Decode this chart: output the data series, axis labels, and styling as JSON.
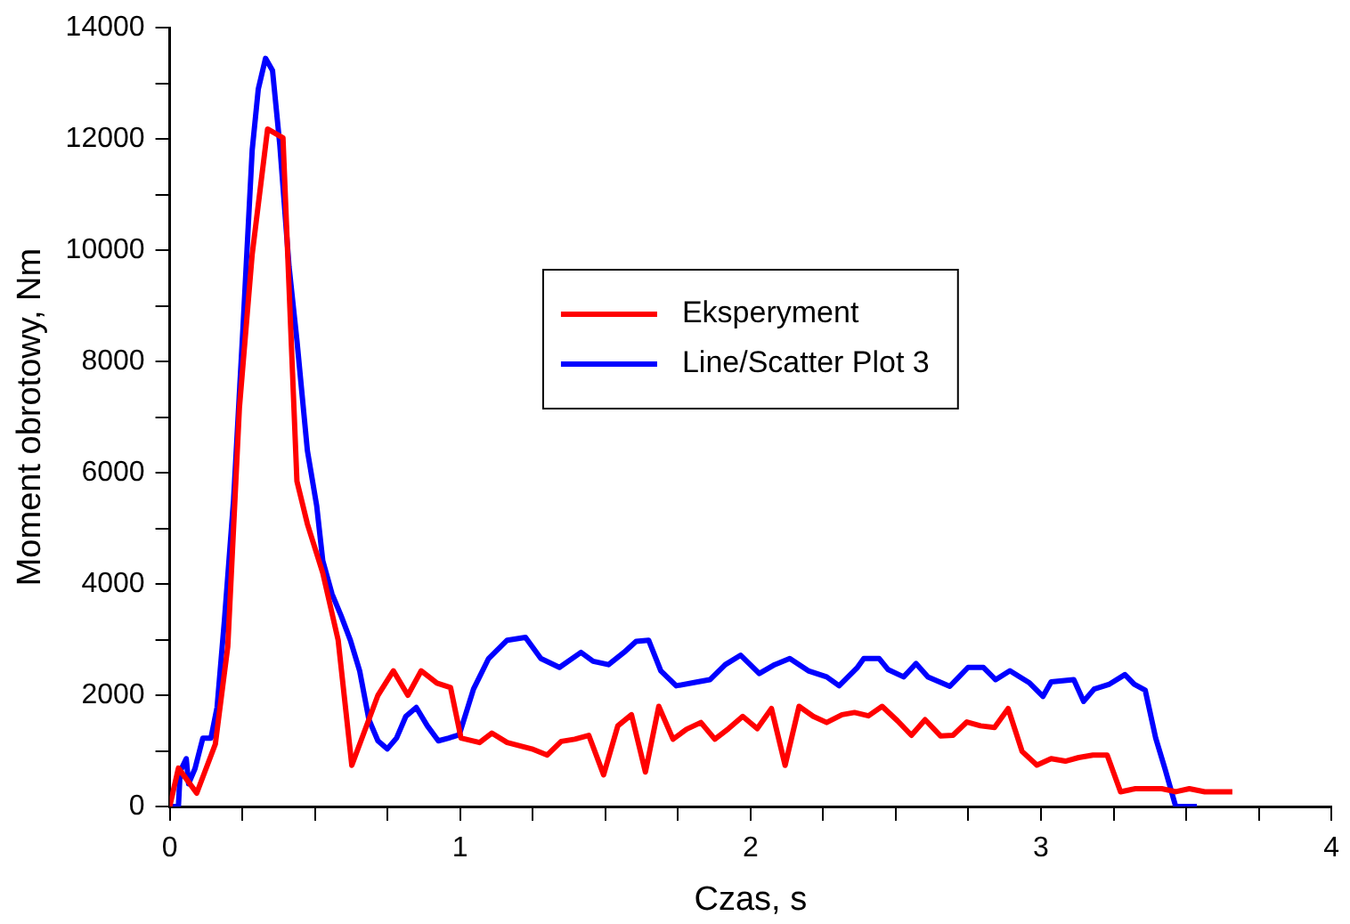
{
  "chart_data": {
    "type": "line",
    "xlabel": "Czas, s",
    "ylabel": "Moment obrotowy, Nm",
    "xlim": [
      0,
      4
    ],
    "xticks": [
      0,
      {
        "value": 0.25,
        "label": null
      },
      {
        "value": 0.5,
        "label": null
      },
      {
        "value": 0.75,
        "label": null
      },
      1,
      {
        "value": 1.25,
        "label": null
      },
      {
        "value": 1.5,
        "label": null
      },
      {
        "value": 1.75,
        "label": null
      },
      2,
      {
        "value": 2.25,
        "label": null
      },
      {
        "value": 2.5,
        "label": null
      },
      {
        "value": 2.75,
        "label": null
      },
      3,
      {
        "value": 3.25,
        "label": null
      },
      {
        "value": 3.5,
        "label": null
      },
      {
        "value": 3.75,
        "label": null
      },
      4
    ],
    "ylim": [
      0,
      14000
    ],
    "yticks": [
      0,
      {
        "value": 1000,
        "label": null
      },
      2000,
      {
        "value": 3000,
        "label": null
      },
      4000,
      {
        "value": 5000,
        "label": null
      },
      6000,
      {
        "value": 7000,
        "label": null
      },
      8000,
      {
        "value": 9000,
        "label": null
      },
      10000,
      {
        "value": 11000,
        "label": null
      },
      12000,
      {
        "value": 13000,
        "label": null
      },
      14000
    ],
    "legend": "center",
    "series": [
      {
        "name": "Eksperyment",
        "color": "#ff0000",
        "x": [
          0,
          0.03,
          0.093,
          0.157,
          0.2,
          0.24,
          0.284,
          0.337,
          0.39,
          0.438,
          0.474,
          0.527,
          0.58,
          0.627,
          0.717,
          0.77,
          0.82,
          0.866,
          0.92,
          0.967,
          1.003,
          1.067,
          1.109,
          1.162,
          1.247,
          1.3,
          1.348,
          1.395,
          1.443,
          1.494,
          1.543,
          1.59,
          1.638,
          1.684,
          1.733,
          1.78,
          1.829,
          1.877,
          1.924,
          1.973,
          2.023,
          2.072,
          2.119,
          2.167,
          2.216,
          2.262,
          2.315,
          2.358,
          2.406,
          2.453,
          2.506,
          2.554,
          2.601,
          2.654,
          2.697,
          2.745,
          2.792,
          2.84,
          2.887,
          2.935,
          2.986,
          3.035,
          3.084,
          3.13,
          3.179,
          3.228,
          3.274,
          3.325,
          3.416,
          3.464,
          3.511,
          3.564,
          3.659
        ],
        "values": [
          0,
          690,
          240,
          1120,
          2880,
          7170,
          9930,
          12180,
          12020,
          5850,
          5080,
          4200,
          2990,
          740,
          2000,
          2440,
          2000,
          2440,
          2220,
          2140,
          1230,
          1150,
          1320,
          1150,
          1035,
          925,
          1170,
          1210,
          1280,
          570,
          1450,
          1650,
          620,
          1800,
          1210,
          1390,
          1510,
          1210,
          1400,
          1620,
          1400,
          1760,
          740,
          1800,
          1620,
          1510,
          1650,
          1690,
          1630,
          1800,
          1540,
          1280,
          1560,
          1270,
          1280,
          1520,
          1450,
          1420,
          1760,
          990,
          745,
          860,
          815,
          880,
          925,
          925,
          265,
          320,
          320,
          265,
          320,
          265,
          265
        ]
      },
      {
        "name": "Line/Scatter Plot 3",
        "color": "#0000ff",
        "x": [
          0,
          0.03,
          0.036,
          0.057,
          0.065,
          0.087,
          0.114,
          0.142,
          0.163,
          0.188,
          0.22,
          0.252,
          0.284,
          0.305,
          0.33,
          0.354,
          0.379,
          0.411,
          0.438,
          0.474,
          0.506,
          0.527,
          0.559,
          0.59,
          0.622,
          0.654,
          0.686,
          0.717,
          0.749,
          0.781,
          0.813,
          0.849,
          0.887,
          0.925,
          0.961,
          0.997,
          1.046,
          1.098,
          1.162,
          1.225,
          1.278,
          1.342,
          1.416,
          1.458,
          1.511,
          1.564,
          1.606,
          1.649,
          1.691,
          1.744,
          1.818,
          1.86,
          1.913,
          1.966,
          2.03,
          2.083,
          2.135,
          2.199,
          2.262,
          2.305,
          2.368,
          2.39,
          2.443,
          2.474,
          2.527,
          2.57,
          2.611,
          2.686,
          2.749,
          2.802,
          2.844,
          2.893,
          2.961,
          3.007,
          3.035,
          3.113,
          3.147,
          3.183,
          3.236,
          3.289,
          3.321,
          3.359,
          3.395,
          3.427,
          3.464,
          3.537
        ],
        "values": [
          0,
          0,
          630,
          860,
          410,
          680,
          1230,
          1230,
          1780,
          3320,
          5520,
          8580,
          11800,
          12900,
          13450,
          13230,
          11900,
          9700,
          8380,
          6400,
          5410,
          4420,
          3820,
          3430,
          2990,
          2440,
          1560,
          1180,
          1035,
          1230,
          1620,
          1780,
          1450,
          1180,
          1230,
          1290,
          2110,
          2660,
          2990,
          3040,
          2660,
          2500,
          2770,
          2610,
          2550,
          2770,
          2970,
          2990,
          2440,
          2170,
          2240,
          2280,
          2550,
          2720,
          2390,
          2550,
          2660,
          2440,
          2330,
          2170,
          2500,
          2660,
          2660,
          2460,
          2330,
          2570,
          2330,
          2160,
          2500,
          2500,
          2280,
          2440,
          2220,
          1980,
          2240,
          2280,
          1890,
          2110,
          2200,
          2370,
          2200,
          2090,
          1230,
          680,
          0,
          0
        ]
      }
    ]
  }
}
